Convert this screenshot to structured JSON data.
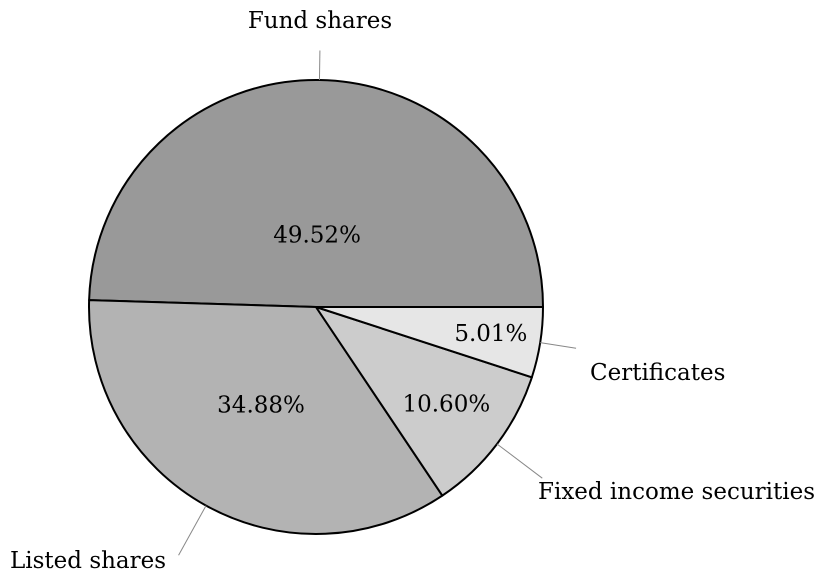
{
  "chart_data": {
    "type": "pie",
    "categories": [
      "Fund shares",
      "Listed shares",
      "Fixed income securities",
      "Certificates"
    ],
    "values": [
      49.52,
      34.88,
      10.6,
      5.01
    ],
    "value_labels": [
      "49.52%",
      "34.88%",
      "10.60%",
      "5.01%"
    ],
    "colors": [
      "#999999",
      "#b3b3b3",
      "#cccccc",
      "#e6e6e6"
    ]
  }
}
